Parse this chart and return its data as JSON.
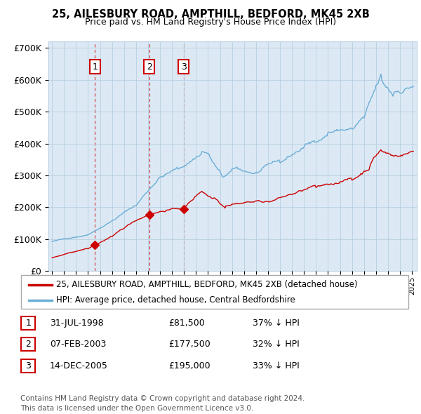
{
  "title": "25, AILESBURY ROAD, AMPTHILL, BEDFORD, MK45 2XB",
  "subtitle": "Price paid vs. HM Land Registry's House Price Index (HPI)",
  "ylim": [
    0,
    720000
  ],
  "yticks": [
    0,
    100000,
    200000,
    300000,
    400000,
    500000,
    600000,
    700000
  ],
  "ytick_labels": [
    "£0",
    "£100K",
    "£200K",
    "£300K",
    "£400K",
    "£500K",
    "£600K",
    "£700K"
  ],
  "xlim_start": 1994.7,
  "xlim_end": 2025.4,
  "sale_color": "#cc0000",
  "hpi_color": "#6baed6",
  "chart_bg": "#dce9f5",
  "sale_points": [
    {
      "year": 1998.58,
      "price": 81500,
      "label": "1"
    },
    {
      "year": 2003.1,
      "price": 177500,
      "label": "2"
    },
    {
      "year": 2005.96,
      "price": 195000,
      "label": "3"
    }
  ],
  "legend_sale": "25, AILESBURY ROAD, AMPTHILL, BEDFORD, MK45 2XB (detached house)",
  "legend_hpi": "HPI: Average price, detached house, Central Bedfordshire",
  "table_rows": [
    {
      "num": "1",
      "date": "31-JUL-1998",
      "price": "£81,500",
      "hpi": "37% ↓ HPI"
    },
    {
      "num": "2",
      "date": "07-FEB-2003",
      "price": "£177,500",
      "hpi": "32% ↓ HPI"
    },
    {
      "num": "3",
      "date": "14-DEC-2005",
      "price": "£195,000",
      "hpi": "33% ↓ HPI"
    }
  ],
  "footnote": "Contains HM Land Registry data © Crown copyright and database right 2024.\nThis data is licensed under the Open Government Licence v3.0.",
  "bg_color": "#ffffff",
  "grid_color": "#b8cfe0",
  "border_color": "#aaaaaa"
}
